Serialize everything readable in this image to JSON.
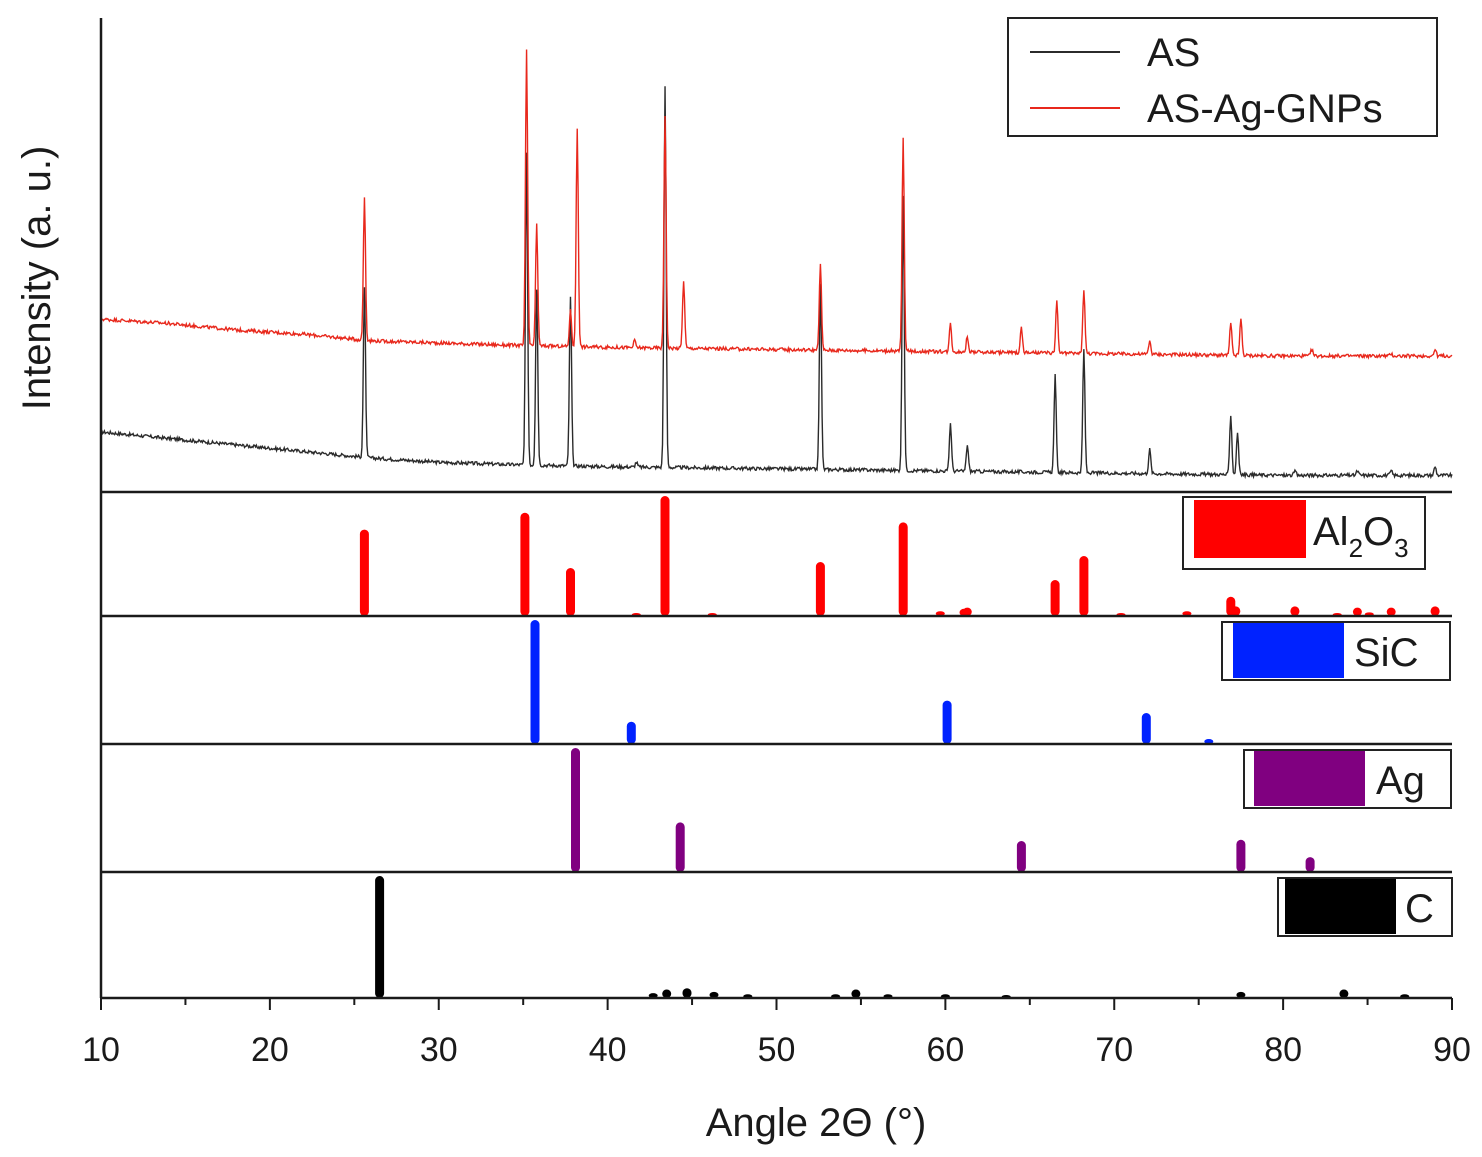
{
  "chart_data": {
    "type": "line",
    "title": "",
    "xlabel": "Angle 2Θ (°)",
    "ylabel": "Intensity (a. u.)",
    "xlim": [
      10,
      90
    ],
    "x_ticks": [
      10,
      20,
      30,
      40,
      50,
      60,
      70,
      80,
      90
    ],
    "grid": false,
    "legend_position": "top-right",
    "series": [
      {
        "name": "AS",
        "color": "#2b2b2b",
        "baseline": {
          "x": [
            10,
            14,
            18,
            22,
            26,
            30,
            34,
            40,
            50,
            60,
            70,
            80,
            90
          ],
          "y": [
            0.12,
            0.105,
            0.09,
            0.075,
            0.06,
            0.05,
            0.045,
            0.04,
            0.035,
            0.03,
            0.025,
            0.02,
            0.02
          ]
        },
        "peaks": [
          {
            "x": 25.6,
            "y": 0.45
          },
          {
            "x": 35.2,
            "y": 0.76
          },
          {
            "x": 35.8,
            "y": 0.45
          },
          {
            "x": 37.8,
            "y": 0.43
          },
          {
            "x": 41.7,
            "y": 0.05
          },
          {
            "x": 43.4,
            "y": 0.92
          },
          {
            "x": 52.6,
            "y": 0.46
          },
          {
            "x": 57.5,
            "y": 0.66
          },
          {
            "x": 60.3,
            "y": 0.14
          },
          {
            "x": 61.3,
            "y": 0.09
          },
          {
            "x": 66.5,
            "y": 0.25
          },
          {
            "x": 68.2,
            "y": 0.31
          },
          {
            "x": 72.1,
            "y": 0.08
          },
          {
            "x": 76.9,
            "y": 0.16
          },
          {
            "x": 77.3,
            "y": 0.12
          },
          {
            "x": 80.7,
            "y": 0.03
          },
          {
            "x": 84.4,
            "y": 0.03
          },
          {
            "x": 86.4,
            "y": 0.03
          },
          {
            "x": 89.0,
            "y": 0.04
          }
        ]
      },
      {
        "name": "AS-Ag-GNPs",
        "color": "#e8281c",
        "baseline": {
          "x": [
            10,
            14,
            18,
            22,
            26,
            30,
            34,
            40,
            50,
            60,
            70,
            80,
            90
          ],
          "y": [
            0.38,
            0.37,
            0.355,
            0.345,
            0.33,
            0.325,
            0.32,
            0.315,
            0.31,
            0.305,
            0.3,
            0.295,
            0.295
          ]
        },
        "peaks": [
          {
            "x": 25.6,
            "y": 0.66
          },
          {
            "x": 35.2,
            "y": 1.0
          },
          {
            "x": 35.8,
            "y": 0.6
          },
          {
            "x": 37.8,
            "y": 0.4
          },
          {
            "x": 38.2,
            "y": 0.82
          },
          {
            "x": 41.6,
            "y": 0.33
          },
          {
            "x": 43.4,
            "y": 0.85
          },
          {
            "x": 44.5,
            "y": 0.47
          },
          {
            "x": 52.6,
            "y": 0.51
          },
          {
            "x": 57.5,
            "y": 0.8
          },
          {
            "x": 60.3,
            "y": 0.37
          },
          {
            "x": 61.3,
            "y": 0.34
          },
          {
            "x": 64.5,
            "y": 0.36
          },
          {
            "x": 66.6,
            "y": 0.42
          },
          {
            "x": 68.2,
            "y": 0.45
          },
          {
            "x": 72.1,
            "y": 0.33
          },
          {
            "x": 76.9,
            "y": 0.37
          },
          {
            "x": 77.5,
            "y": 0.38
          },
          {
            "x": 81.7,
            "y": 0.31
          },
          {
            "x": 86.4,
            "y": 0.3
          },
          {
            "x": 89.0,
            "y": 0.31
          }
        ]
      }
    ],
    "references": [
      {
        "label_main": "Al",
        "label_sub1": "2",
        "label_mid": "O",
        "label_sub2": "3",
        "color": "#ff0000",
        "peaks": [
          {
            "x": 25.6,
            "y": 0.72
          },
          {
            "x": 35.1,
            "y": 0.86
          },
          {
            "x": 37.8,
            "y": 0.4
          },
          {
            "x": 41.7,
            "y": 0.02
          },
          {
            "x": 43.4,
            "y": 1.0
          },
          {
            "x": 46.2,
            "y": 0.02
          },
          {
            "x": 52.6,
            "y": 0.45
          },
          {
            "x": 57.5,
            "y": 0.78
          },
          {
            "x": 59.7,
            "y": 0.04
          },
          {
            "x": 61.1,
            "y": 0.06
          },
          {
            "x": 61.3,
            "y": 0.07
          },
          {
            "x": 66.5,
            "y": 0.3
          },
          {
            "x": 68.2,
            "y": 0.5
          },
          {
            "x": 70.4,
            "y": 0.02
          },
          {
            "x": 74.3,
            "y": 0.04
          },
          {
            "x": 76.9,
            "y": 0.16
          },
          {
            "x": 77.2,
            "y": 0.08
          },
          {
            "x": 80.7,
            "y": 0.08
          },
          {
            "x": 83.2,
            "y": 0.02
          },
          {
            "x": 84.4,
            "y": 0.07
          },
          {
            "x": 85.1,
            "y": 0.03
          },
          {
            "x": 86.4,
            "y": 0.07
          },
          {
            "x": 89.0,
            "y": 0.08
          }
        ]
      },
      {
        "label": "SiC",
        "color": "#0022ff",
        "peaks": [
          {
            "x": 35.7,
            "y": 1.0
          },
          {
            "x": 41.4,
            "y": 0.18
          },
          {
            "x": 60.1,
            "y": 0.35
          },
          {
            "x": 71.9,
            "y": 0.25
          },
          {
            "x": 75.6,
            "y": 0.04
          }
        ]
      },
      {
        "label": "Ag",
        "color": "#800080",
        "peaks": [
          {
            "x": 38.1,
            "y": 1.0
          },
          {
            "x": 44.3,
            "y": 0.4
          },
          {
            "x": 64.5,
            "y": 0.25
          },
          {
            "x": 77.5,
            "y": 0.26
          },
          {
            "x": 81.6,
            "y": 0.12
          }
        ]
      },
      {
        "label": "C",
        "color": "#000000",
        "peaks": [
          {
            "x": 26.5,
            "y": 1.0
          },
          {
            "x": 42.7,
            "y": 0.04
          },
          {
            "x": 43.5,
            "y": 0.07
          },
          {
            "x": 44.7,
            "y": 0.08
          },
          {
            "x": 46.3,
            "y": 0.05
          },
          {
            "x": 48.3,
            "y": 0.03
          },
          {
            "x": 53.5,
            "y": 0.03
          },
          {
            "x": 54.7,
            "y": 0.07
          },
          {
            "x": 56.6,
            "y": 0.03
          },
          {
            "x": 60.0,
            "y": 0.03
          },
          {
            "x": 63.6,
            "y": 0.02
          },
          {
            "x": 77.5,
            "y": 0.05
          },
          {
            "x": 83.6,
            "y": 0.07
          },
          {
            "x": 87.2,
            "y": 0.03
          }
        ]
      }
    ]
  }
}
